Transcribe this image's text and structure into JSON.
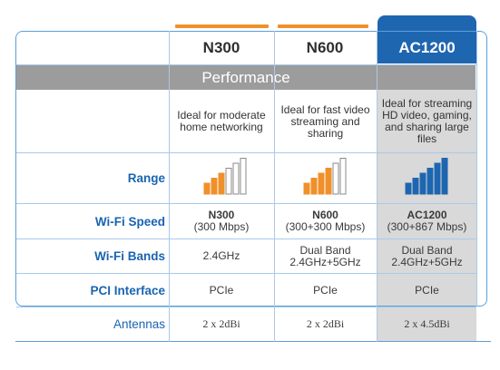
{
  "columns": [
    {
      "name": "N300"
    },
    {
      "name": "N600"
    },
    {
      "name": "AC1200"
    }
  ],
  "section_title": "Performance",
  "descriptions": [
    [
      "Ideal for moderate",
      "home networking"
    ],
    [
      "Ideal for fast video",
      "streaming and",
      "sharing"
    ],
    [
      "Ideal for streaming",
      "HD video, gaming,",
      "and sharing large",
      "files"
    ]
  ],
  "rows": {
    "range": {
      "label": "Range"
    },
    "wifi_speed": {
      "label": "Wi-Fi Speed",
      "values": [
        {
          "line1": "N300",
          "line2": "(300 Mbps)"
        },
        {
          "line1": "N600",
          "line2": "(300+300 Mbps)"
        },
        {
          "line1": "AC1200",
          "line2": "(300+867 Mbps)"
        }
      ]
    },
    "wifi_bands": {
      "label": "Wi-Fi Bands",
      "values": [
        {
          "line1": "2.4GHz",
          "line2": ""
        },
        {
          "line1": "Dual Band",
          "line2": "2.4GHz+5GHz"
        },
        {
          "line1": "Dual Band",
          "line2": "2.4GHz+5GHz"
        }
      ]
    },
    "pci": {
      "label": "PCI Interface",
      "values": [
        "PCIe",
        "PCIe",
        "PCIe"
      ]
    },
    "antennas": {
      "label": "Antennas",
      "values": [
        "2 x 2dBi",
        "2 x 2dBi",
        "2 x 4.5dBi"
      ]
    }
  },
  "signal_bars": [
    {
      "filled": 3,
      "total": 6,
      "color": "#f0902a"
    },
    {
      "filled": 4,
      "total": 6,
      "color": "#f0902a"
    },
    {
      "filled": 6,
      "total": 6,
      "color": "#1f66b0"
    }
  ],
  "colors": {
    "accent_blue": "#1f66b0",
    "orange": "#f0902a",
    "label_blue": "#1a64b0",
    "band_gray": "#9c9c9c",
    "highlight_gray": "#d9d9d9"
  }
}
